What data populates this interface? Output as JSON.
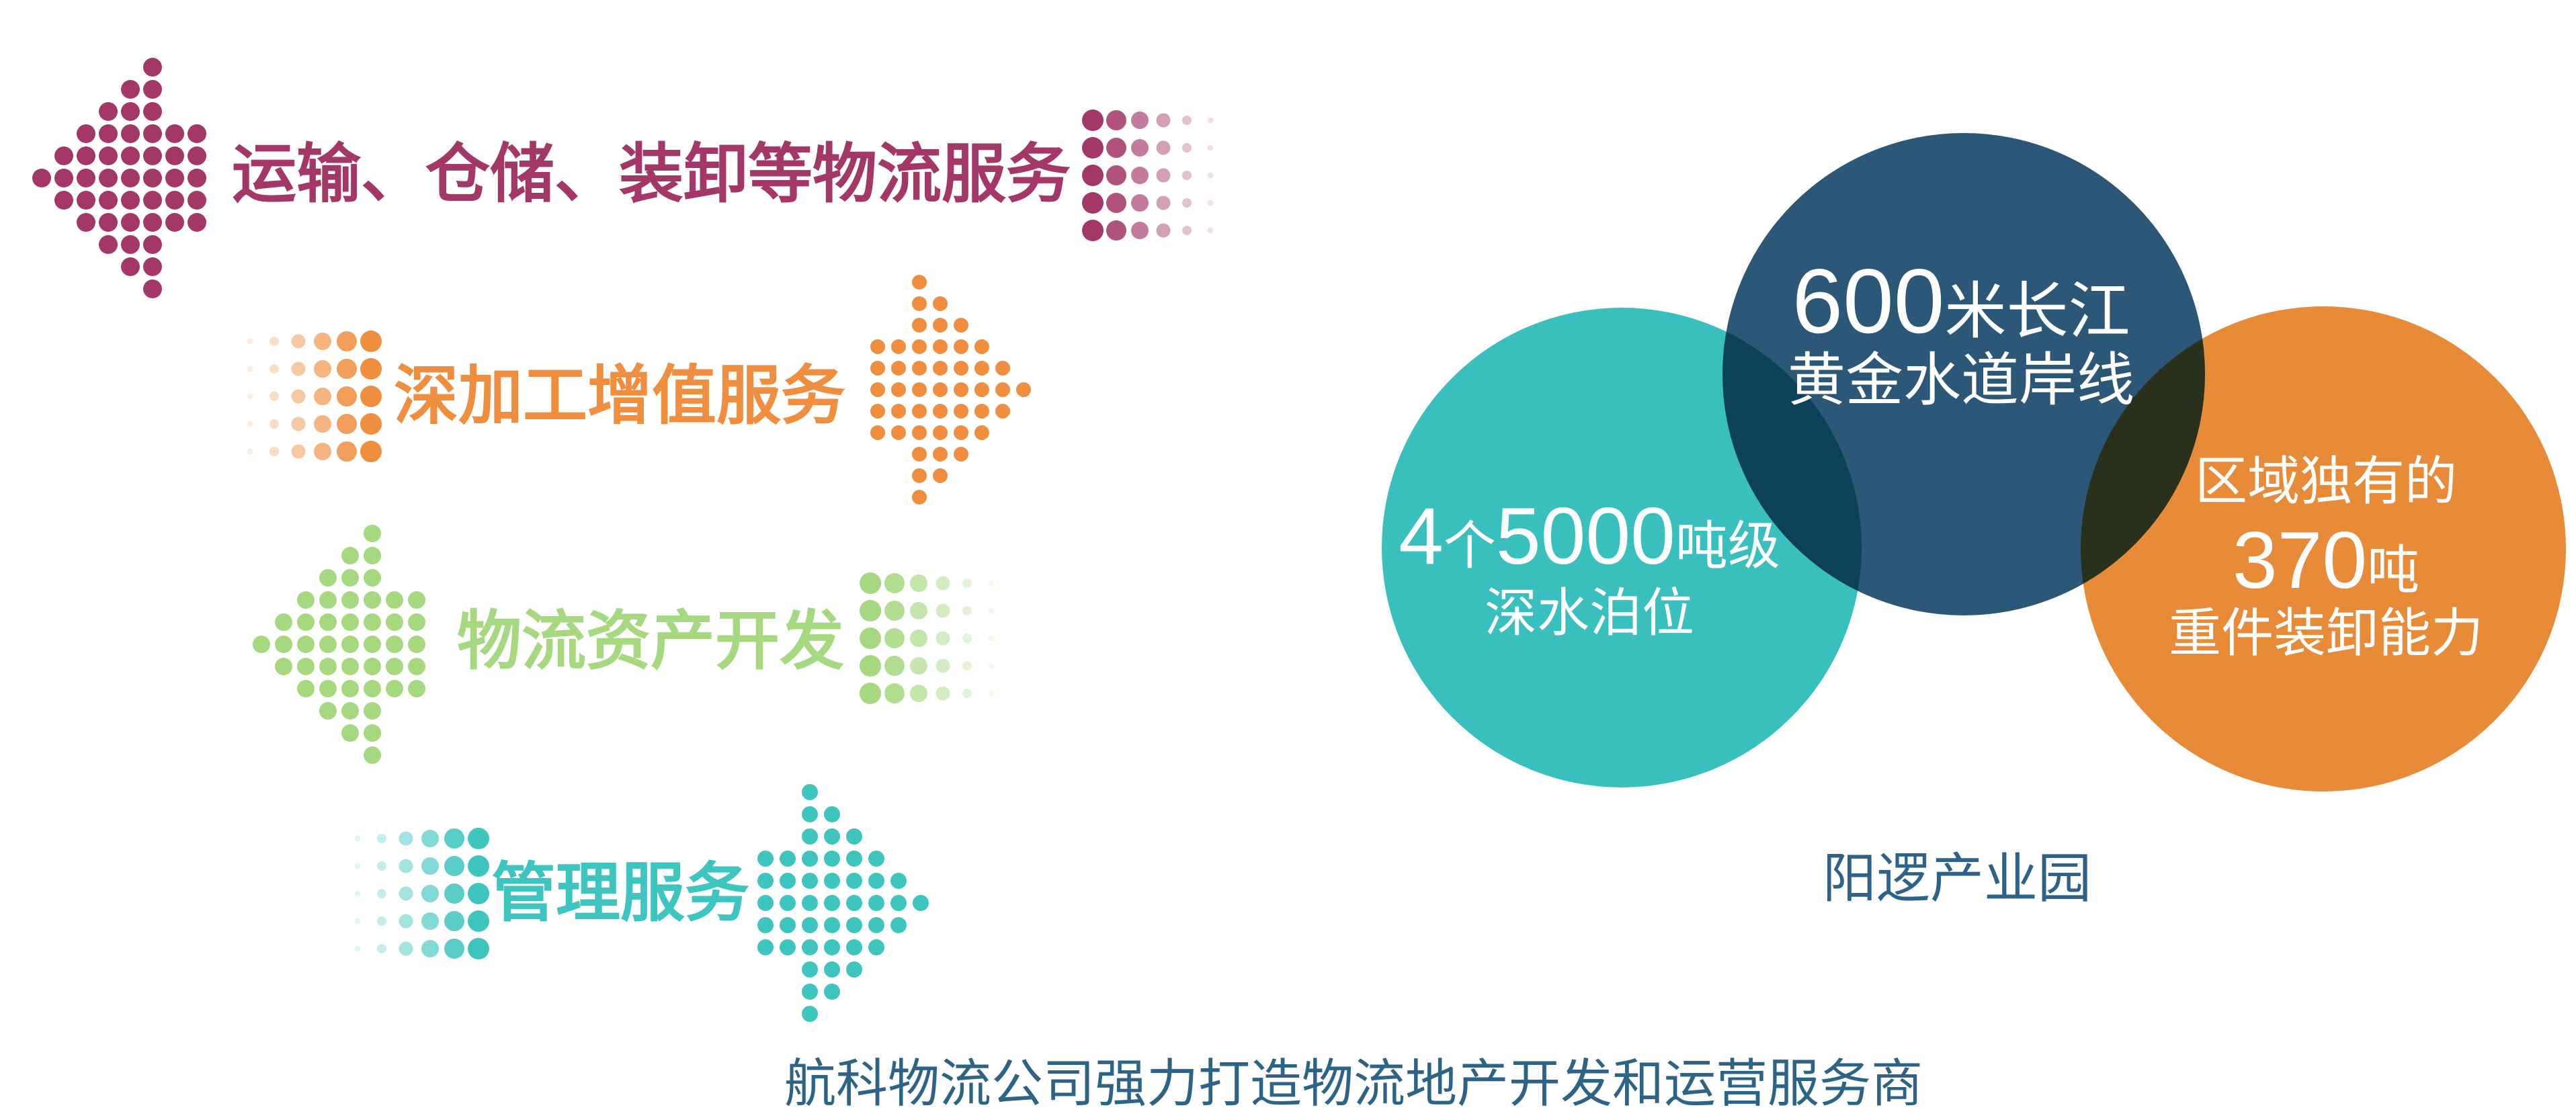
{
  "background": "#ffffff",
  "services": [
    {
      "label": "运输、仓储、装卸等物流服务",
      "color": "#a23768"
    },
    {
      "label": "深加工增值服务",
      "color": "#ee8e3e"
    },
    {
      "label": "物流资产开发",
      "color": "#a6d87f"
    },
    {
      "label": "管理服务",
      "color": "#3fc5bf"
    }
  ],
  "venn": {
    "caption": "阳逻产业园",
    "caption_color": "#2e6289",
    "circles": [
      {
        "name": "deep-water-berths",
        "color": "#39bfbe",
        "line1_num1": "4",
        "line1_cjk1": "个",
        "line1_num2": "5000",
        "line1_cjk2": "吨级",
        "line2": "深水泊位"
      },
      {
        "name": "yangtze-golden-waterway",
        "color": "#2d5777",
        "line1_num": "600",
        "line1_cjk": "米长江",
        "line2": "黄金水道岸线"
      },
      {
        "name": "heavy-lift-capacity",
        "color": "#e78b39",
        "line1": "区域独有的",
        "line2_num": "370",
        "line2_cjk": "吨",
        "line3": "重件装卸能力"
      }
    ]
  },
  "headline": {
    "text": "航科物流公司强力打造物流地产开发和运营服务商",
    "color": "#2d6486"
  }
}
